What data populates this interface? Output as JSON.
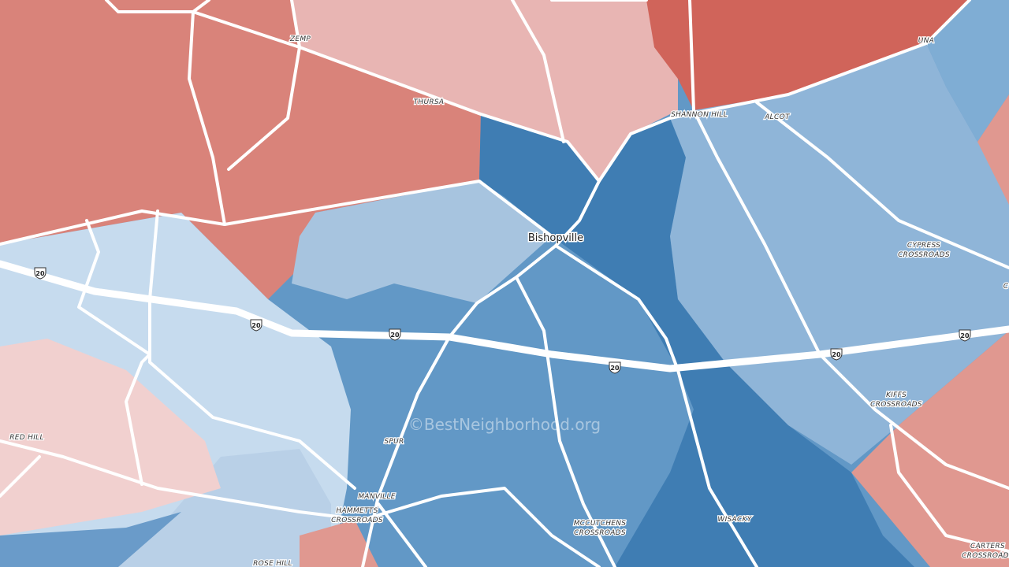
{
  "labels": [
    {
      "lines": [
        "ZEMP"
      ]
    },
    {
      "lines": [
        "THURSA"
      ]
    },
    {
      "lines": [
        "SHANNON HILL"
      ]
    },
    {
      "lines": [
        "ALCOT"
      ]
    },
    {
      "lines": [
        "UNA"
      ]
    },
    {
      "lines": [
        "CYPRESS",
        "CROSSROADS"
      ]
    },
    {
      "lines": [
        "KIFFS",
        "CROSSROADS"
      ]
    },
    {
      "lines": [
        "RED HILL"
      ]
    },
    {
      "lines": [
        "SPUR"
      ]
    },
    {
      "lines": [
        "MANVILLE"
      ]
    },
    {
      "lines": [
        "HAMMETTS",
        "CROSSROADS"
      ]
    },
    {
      "lines": [
        "MCCUTCHENS",
        "CROSSROADS"
      ]
    },
    {
      "lines": [
        "WISACKY"
      ]
    },
    {
      "lines": [
        "ROSE HILL"
      ]
    },
    {
      "lines": [
        "CARTERS",
        "CROSSROADS"
      ]
    },
    {
      "lines": [
        "C"
      ]
    }
  ],
  "city": "Bishopville",
  "shields": [
    "20",
    "20",
    "20",
    "20",
    "20",
    "20"
  ],
  "watermark": "©BestNeighborhood.org"
}
